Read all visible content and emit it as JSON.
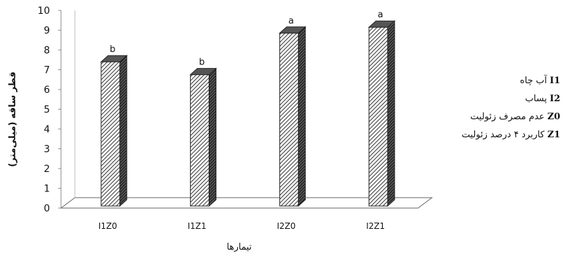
{
  "chart_data": {
    "type": "bar",
    "title": "",
    "xlabel": "تیمارها",
    "ylabel": "قطر ساقه (میلی‌متر)",
    "ylim": [
      0,
      10
    ],
    "yticks": [
      "0",
      "1",
      "2",
      "3",
      "4",
      "5",
      "6",
      "7",
      "8",
      "9",
      "10"
    ],
    "categories": [
      "I1Z0",
      "I1Z1",
      "I2Z0",
      "I2Z1"
    ],
    "values": [
      7.4,
      6.75,
      8.85,
      9.15
    ],
    "letters": [
      "b",
      "b",
      "a",
      "a"
    ],
    "style": "3d-hatched-bars",
    "grid": false
  },
  "legend": [
    {
      "code": "I1",
      "text": "آب چاه"
    },
    {
      "code": "I2",
      "text": "پساب"
    },
    {
      "code": "Z0",
      "text": "عدم مصرف زئولیت"
    },
    {
      "code": "Z1",
      "text": "کاربرد ۴ درصد زئولیت"
    }
  ]
}
